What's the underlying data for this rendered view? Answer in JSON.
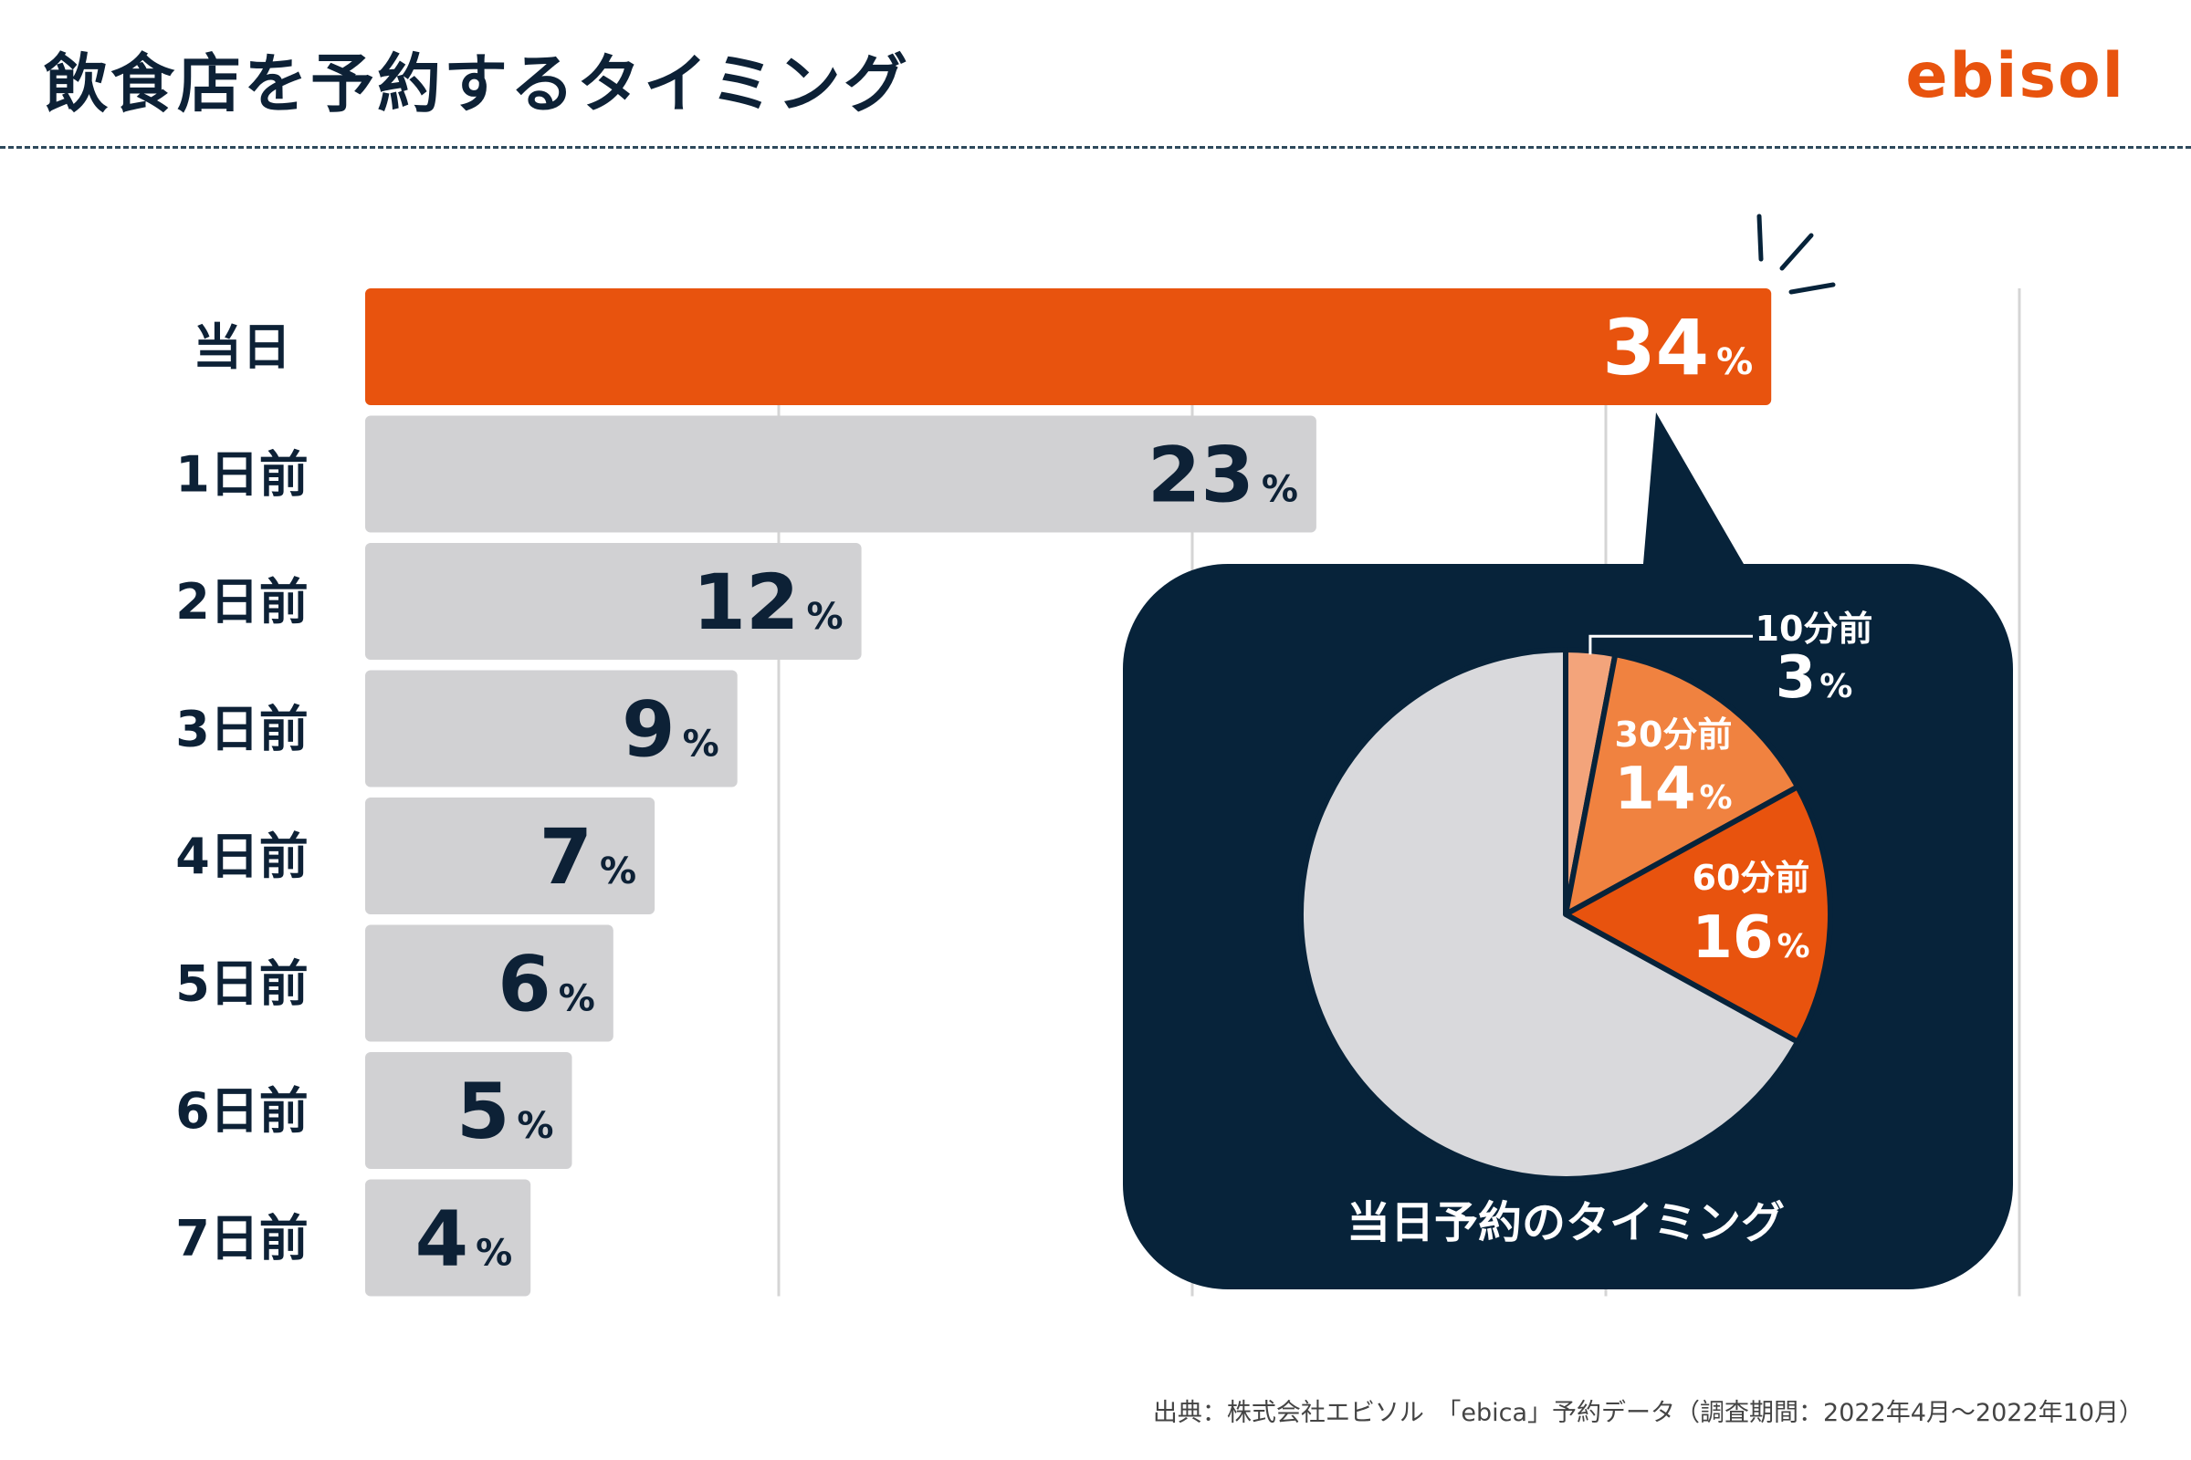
{
  "header": {
    "title": "飲食店を予約するタイミング",
    "logo": "ebisol"
  },
  "source": "出典：株式会社エビソル　「ebica」予約データ（調査期間：2022年4月〜2022年10月）",
  "colors": {
    "highlight": "#e8530e",
    "bar": "#d1d1d3",
    "text": "#0d2136",
    "bubble": "#07233a",
    "pie_rest": "#d9d9dc",
    "pie_10": "#f3a47b",
    "pie_30": "#f08240",
    "pie_60": "#e8530e"
  },
  "chart_data": [
    {
      "type": "bar",
      "orientation": "horizontal",
      "title": "",
      "unit": "%",
      "categories": [
        "当日",
        "1日前",
        "2日前",
        "3日前",
        "4日前",
        "5日前",
        "6日前",
        "7日前"
      ],
      "values": [
        34,
        23,
        12,
        9,
        7,
        6,
        5,
        4
      ],
      "highlight_index": 0,
      "xlim": [
        0,
        40
      ],
      "grid": true
    },
    {
      "type": "pie",
      "title": "当日予約のタイミング",
      "unit": "%",
      "slices": [
        {
          "label": "10分前",
          "value": 3
        },
        {
          "label": "30分前",
          "value": 14
        },
        {
          "label": "60分前",
          "value": 16
        },
        {
          "label": "",
          "value": 67
        }
      ]
    }
  ]
}
